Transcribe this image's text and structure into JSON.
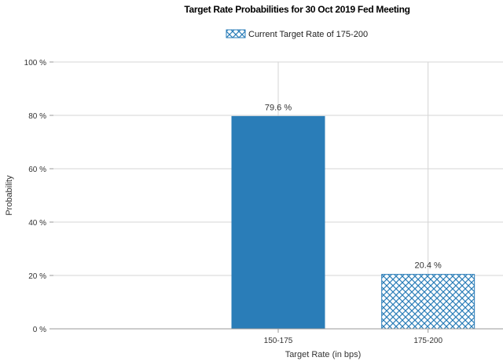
{
  "chart_data": {
    "type": "bar",
    "title": "Target Rate Probabilities for 30 Oct 2019 Fed Meeting",
    "xlabel": "Target Rate (in bps)",
    "ylabel": "Probability",
    "categories": [
      "150-175",
      "175-200"
    ],
    "values": [
      79.6,
      20.4
    ],
    "data_labels": [
      "79.6 %",
      "20.4 %"
    ],
    "ylim": [
      0,
      100
    ],
    "yticks": [
      0,
      20,
      40,
      60,
      80,
      100
    ],
    "ytick_labels": [
      "0 %",
      "20 %",
      "40 %",
      "60 %",
      "80 %",
      "100 %"
    ],
    "legend": {
      "position": "top-center",
      "entries": [
        {
          "label": "Current Target Rate of 175-200",
          "style": "hatched"
        }
      ]
    },
    "highlight_category": "175-200",
    "grid": true,
    "colors": {
      "bar": "#2a7db8",
      "hatch_fill": "#ffffff",
      "hatch_stroke": "#2a7db8",
      "grid": "#d4d4d4",
      "axis": "#999999"
    }
  }
}
